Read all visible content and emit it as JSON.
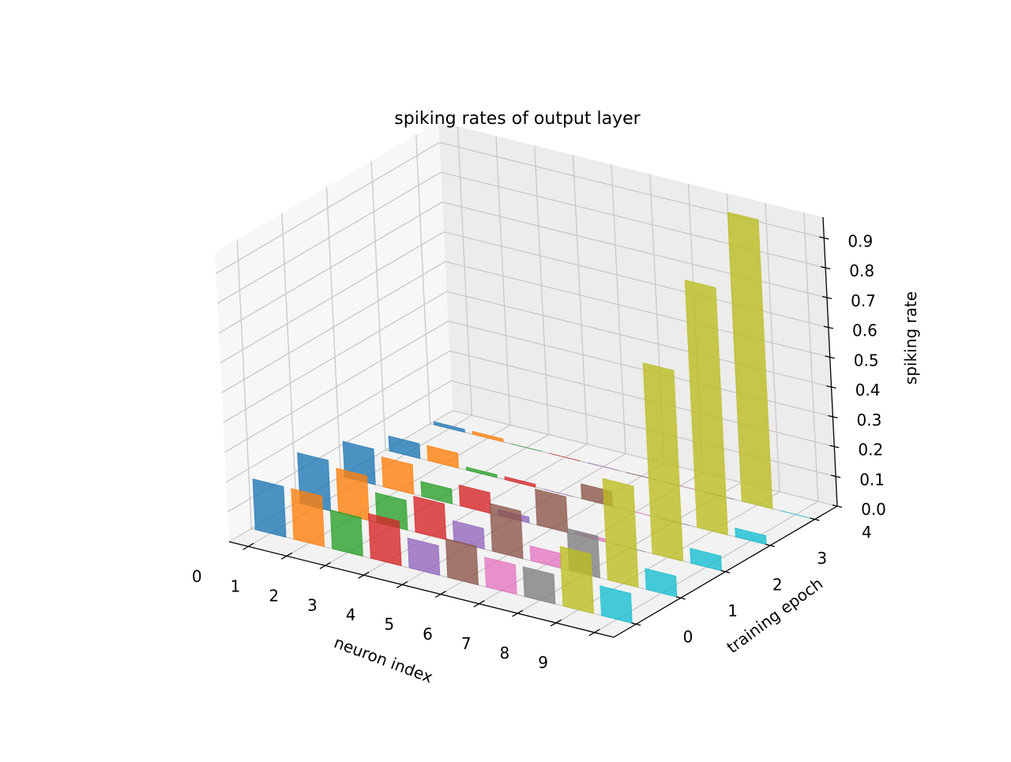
{
  "chart_data": {
    "type": "bar3d",
    "title": "spiking rates of output layer",
    "xlabel": "neuron index",
    "ylabel": "training epoch",
    "zlabel": "spiking rate",
    "x_ticks": [
      "0",
      "1",
      "2",
      "3",
      "4",
      "5",
      "6",
      "7",
      "8",
      "9"
    ],
    "y_ticks": [
      "0",
      "1",
      "2",
      "3",
      "4"
    ],
    "z_ticks": [
      "0.0",
      "0.1",
      "0.2",
      "0.3",
      "0.4",
      "0.5",
      "0.6",
      "0.7",
      "0.8",
      "0.9"
    ],
    "xlim": [
      -0.5,
      9.5
    ],
    "ylim": [
      -0.5,
      4.5
    ],
    "zlim": [
      0,
      0.97
    ],
    "grid": true,
    "series": [
      {
        "neuron": "0",
        "color": "#1f77b4",
        "values": [
          0.17,
          0.17,
          0.12,
          0.05,
          0.01
        ]
      },
      {
        "neuron": "1",
        "color": "#ff7f0e",
        "values": [
          0.17,
          0.15,
          0.1,
          0.05,
          0.01
        ]
      },
      {
        "neuron": "2",
        "color": "#2ca02c",
        "values": [
          0.13,
          0.1,
          0.05,
          0.01,
          0.0
        ]
      },
      {
        "neuron": "3",
        "color": "#d62728",
        "values": [
          0.15,
          0.12,
          0.07,
          0.01,
          0.0
        ]
      },
      {
        "neuron": "4",
        "color": "#9467bd",
        "values": [
          0.1,
          0.07,
          0.02,
          0.0,
          0.0
        ]
      },
      {
        "neuron": "5",
        "color": "#8c564b",
        "values": [
          0.13,
          0.16,
          0.12,
          0.05,
          0.0
        ]
      },
      {
        "neuron": "6",
        "color": "#e377c2",
        "values": [
          0.1,
          0.05,
          0.01,
          0.0,
          0.0
        ]
      },
      {
        "neuron": "7",
        "color": "#7f7f7f",
        "values": [
          0.1,
          0.14,
          0.0,
          0.0,
          0.0
        ]
      },
      {
        "neuron": "8",
        "color": "#bcbd22",
        "values": [
          0.2,
          0.34,
          0.64,
          0.83,
          0.97
        ]
      },
      {
        "neuron": "9",
        "color": "#17becf",
        "values": [
          0.1,
          0.07,
          0.05,
          0.03,
          0.0
        ]
      }
    ]
  }
}
